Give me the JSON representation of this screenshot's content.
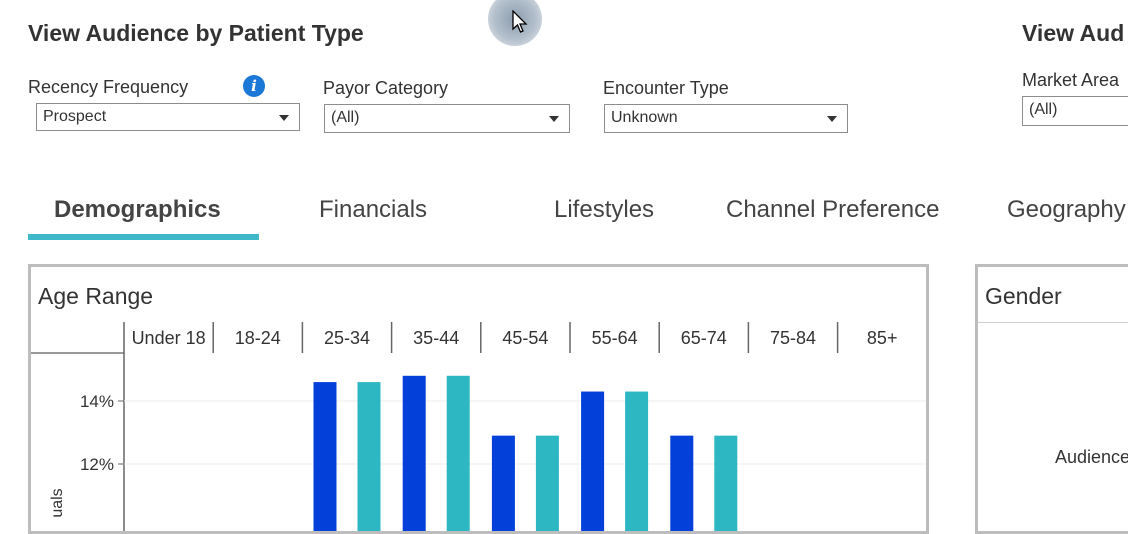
{
  "header": {
    "title": "View Audience by Patient Type",
    "title_right": "View Aud"
  },
  "filters": {
    "recency": {
      "label": "Recency Frequency",
      "value": "Prospect"
    },
    "payor": {
      "label": "Payor Category",
      "value": "(All)"
    },
    "encounter": {
      "label": "Encounter Type",
      "value": "Unknown"
    },
    "market": {
      "label": "Market Area",
      "value": "(All)"
    }
  },
  "tabs": [
    {
      "label": "Demographics",
      "active": true
    },
    {
      "label": "Financials",
      "active": false
    },
    {
      "label": "Lifestyles",
      "active": false
    },
    {
      "label": "Channel Preference",
      "active": false
    },
    {
      "label": "Geography",
      "active": false
    }
  ],
  "age_panel": {
    "title": "Age Range"
  },
  "gender_panel": {
    "title": "Gender",
    "label": "Audience"
  },
  "colors": {
    "blue": "#0340d9",
    "teal": "#2cb7c2",
    "accent": "#3fb8c9"
  },
  "chart_data": {
    "type": "bar",
    "categories": [
      "Under 18",
      "18-24",
      "25-34",
      "35-44",
      "45-54",
      "55-64",
      "65-74",
      "75-84",
      "85+"
    ],
    "ylabel": "uals",
    "y_ticks": [
      "14%",
      "12%"
    ],
    "y_tick_values": [
      14,
      12
    ],
    "series": [
      {
        "color": "#0340d9",
        "values": [
          null,
          null,
          14.6,
          14.8,
          12.9,
          14.3,
          12.9,
          null,
          null
        ]
      },
      {
        "color": "#2cb7c2",
        "values": [
          null,
          null,
          14.6,
          14.8,
          12.9,
          14.3,
          12.9,
          null,
          null
        ]
      }
    ]
  }
}
